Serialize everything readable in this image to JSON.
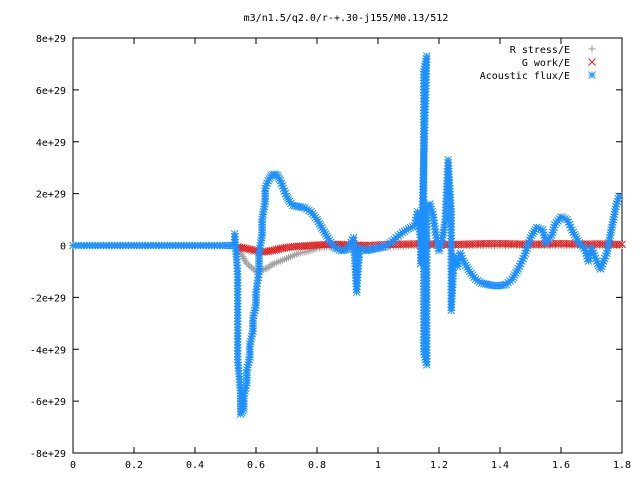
{
  "chart_data": {
    "type": "scatter",
    "title": "m3/n1.5/q2.0/r-+.30-j155/M0.13/512",
    "xlabel": "",
    "ylabel": "",
    "xlim": [
      0,
      1.8
    ],
    "ylim": [
      -8e+29,
      8e+29
    ],
    "x_ticks": [
      {
        "v": 0,
        "label": "0"
      },
      {
        "v": 0.2,
        "label": "0.2"
      },
      {
        "v": 0.4,
        "label": "0.4"
      },
      {
        "v": 0.6,
        "label": "0.6"
      },
      {
        "v": 0.8,
        "label": "0.8"
      },
      {
        "v": 1.0,
        "label": "1"
      },
      {
        "v": 1.2,
        "label": "1.2"
      },
      {
        "v": 1.4,
        "label": "1.4"
      },
      {
        "v": 1.6,
        "label": "1.6"
      },
      {
        "v": 1.8,
        "label": "1.8"
      }
    ],
    "y_ticks": [
      {
        "v": 8e+29,
        "label": "8e+29"
      },
      {
        "v": 6e+29,
        "label": "6e+29"
      },
      {
        "v": 4e+29,
        "label": "4e+29"
      },
      {
        "v": 2e+29,
        "label": "2e+29"
      },
      {
        "v": 0,
        "label": "0"
      },
      {
        "v": -2e+29,
        "label": "-2e+29"
      },
      {
        "v": -4e+29,
        "label": "-4e+29"
      },
      {
        "v": -6e+29,
        "label": "-6e+29"
      },
      {
        "v": -8e+29,
        "label": "-8e+29"
      }
    ],
    "grid": false,
    "legend_position": "top-right",
    "series": [
      {
        "name": "R stress/E",
        "marker": "plus",
        "color": "#a0a0a0",
        "points": [
          [
            0.54,
            -1e+28
          ],
          [
            0.55,
            -3e+28
          ],
          [
            0.56,
            -5e+28
          ],
          [
            0.57,
            -7e+28
          ],
          [
            0.58,
            -8e+28
          ],
          [
            0.59,
            -9e+28
          ],
          [
            0.6,
            -1e+29
          ],
          [
            0.61,
            -1e+29
          ],
          [
            0.62,
            -9.5e+28
          ],
          [
            0.63,
            -9e+28
          ],
          [
            0.64,
            -8.5e+28
          ],
          [
            0.65,
            -7.5e+28
          ],
          [
            0.66,
            -7e+28
          ],
          [
            0.68,
            -6e+28
          ],
          [
            0.7,
            -5e+28
          ],
          [
            0.72,
            -4e+28
          ],
          [
            0.74,
            -3e+28
          ],
          [
            0.76,
            -2.5e+28
          ],
          [
            0.78,
            -2e+28
          ],
          [
            0.8,
            -1e+28
          ],
          [
            0.84,
            -5e+27
          ],
          [
            0.88,
            -1e+28
          ],
          [
            0.92,
            -2e+28
          ],
          [
            0.96,
            -1.5e+28
          ],
          [
            1.0,
            -1e+28
          ],
          [
            1.05,
            -5e+27
          ],
          [
            1.1,
            0.0
          ],
          [
            1.2,
            0.0
          ],
          [
            1.3,
            0.0
          ],
          [
            1.4,
            0.0
          ],
          [
            1.5,
            0.0
          ],
          [
            1.6,
            0.0
          ],
          [
            1.7,
            0.0
          ],
          [
            1.8,
            0.0
          ]
        ]
      },
      {
        "name": "G work/E",
        "marker": "cross",
        "color": "#e02020",
        "points": [
          [
            0.54,
            -5e+27
          ],
          [
            0.56,
            -1e+28
          ],
          [
            0.58,
            -1.5e+28
          ],
          [
            0.6,
            -2e+28
          ],
          [
            0.62,
            -2.5e+28
          ],
          [
            0.64,
            -2.2e+28
          ],
          [
            0.66,
            -1.8e+28
          ],
          [
            0.68,
            -1.2e+28
          ],
          [
            0.7,
            -8e+27
          ],
          [
            0.72,
            -5e+27
          ],
          [
            0.74,
            -3e+27
          ],
          [
            0.76,
            -2e+27
          ],
          [
            0.78,
            0.0
          ],
          [
            0.8,
            2e+27
          ],
          [
            0.82,
            3e+27
          ],
          [
            0.84,
            4e+27
          ],
          [
            0.86,
            4e+27
          ],
          [
            0.88,
            4e+27
          ],
          [
            0.9,
            3e+27
          ],
          [
            0.92,
            2e+27
          ],
          [
            0.94,
            1e+27
          ],
          [
            0.96,
            0.0
          ],
          [
            1.0,
            2e+27
          ],
          [
            1.04,
            4e+27
          ],
          [
            1.08,
            5e+27
          ],
          [
            1.12,
            6e+27
          ],
          [
            1.16,
            6e+27
          ],
          [
            1.2,
            5e+27
          ],
          [
            1.24,
            4e+27
          ],
          [
            1.28,
            5e+27
          ],
          [
            1.32,
            6e+27
          ],
          [
            1.36,
            7e+27
          ],
          [
            1.4,
            7e+27
          ],
          [
            1.44,
            6e+27
          ],
          [
            1.48,
            5e+27
          ],
          [
            1.52,
            5e+27
          ],
          [
            1.56,
            6e+27
          ],
          [
            1.6,
            7e+27
          ],
          [
            1.64,
            6e+27
          ],
          [
            1.68,
            5e+27
          ],
          [
            1.72,
            6e+27
          ],
          [
            1.76,
            5e+27
          ],
          [
            1.8,
            4e+27
          ]
        ]
      },
      {
        "name": "Acoustic flux/E",
        "marker": "star",
        "color": "#1e90ff",
        "points": [
          [
            0.0,
            0.0
          ],
          [
            0.1,
            0.0
          ],
          [
            0.2,
            0.0
          ],
          [
            0.3,
            0.0
          ],
          [
            0.4,
            0.0
          ],
          [
            0.5,
            0.0
          ],
          [
            0.53,
            0.0
          ],
          [
            0.53,
            4.5e+28
          ],
          [
            0.54,
            -1.1e+29
          ],
          [
            0.54,
            -4.4e+29
          ],
          [
            0.55,
            -5.7e+29
          ],
          [
            0.55,
            -6.2e+29
          ],
          [
            0.55,
            -6.5e+29
          ],
          [
            0.56,
            -6.3e+29
          ],
          [
            0.56,
            -5.8e+29
          ],
          [
            0.57,
            -5.3e+29
          ],
          [
            0.57,
            -4.8e+29
          ],
          [
            0.58,
            -4.3e+29
          ],
          [
            0.58,
            -3.8e+29
          ],
          [
            0.59,
            -3.3e+29
          ],
          [
            0.59,
            -2.8e+29
          ],
          [
            0.6,
            -2.3e+29
          ],
          [
            0.6,
            -1.8e+29
          ],
          [
            0.61,
            -1e+29
          ],
          [
            0.61,
            -3e+28
          ],
          [
            0.62,
            4e+28
          ],
          [
            0.62,
            1e+29
          ],
          [
            0.63,
            1.7e+29
          ],
          [
            0.63,
            2.2e+29
          ],
          [
            0.64,
            2.5e+29
          ],
          [
            0.65,
            2.7e+29
          ],
          [
            0.66,
            2.75e+29
          ],
          [
            0.67,
            2.7e+29
          ],
          [
            0.68,
            2.5e+29
          ],
          [
            0.69,
            2.2e+29
          ],
          [
            0.7,
            1.9e+29
          ],
          [
            0.71,
            1.7e+29
          ],
          [
            0.72,
            1.55e+29
          ],
          [
            0.74,
            1.5e+29
          ],
          [
            0.76,
            1.45e+29
          ],
          [
            0.78,
            1.3e+29
          ],
          [
            0.8,
            1e+29
          ],
          [
            0.82,
            6e+28
          ],
          [
            0.84,
            2e+28
          ],
          [
            0.86,
            -1e+28
          ],
          [
            0.88,
            -2e+28
          ],
          [
            0.9,
            -1.5e+28
          ],
          [
            0.92,
            3e+28
          ],
          [
            0.93,
            -1.8e+29
          ],
          [
            0.94,
            -1e+28
          ],
          [
            0.96,
            -2e+28
          ],
          [
            0.98,
            -1.5e+28
          ],
          [
            1.0,
            -1e+28
          ],
          [
            1.02,
            -5e+27
          ],
          [
            1.04,
            1e+28
          ],
          [
            1.06,
            3e+28
          ],
          [
            1.08,
            5e+28
          ],
          [
            1.1,
            6.5e+28
          ],
          [
            1.12,
            7.5e+28
          ],
          [
            1.13,
            1.3e+29
          ],
          [
            1.14,
            2e+28
          ],
          [
            1.14,
            -7e+28
          ],
          [
            1.16,
            7.3e+29
          ],
          [
            1.15,
            6.7e+29
          ],
          [
            1.15,
            -4.1e+29
          ],
          [
            1.16,
            -4.6e+29
          ],
          [
            1.16,
            1.4e+29
          ],
          [
            1.17,
            1.6e+29
          ],
          [
            1.18,
            1.2e+29
          ],
          [
            1.19,
            4e+28
          ],
          [
            1.2,
            -2e+28
          ],
          [
            1.21,
            2e+28
          ],
          [
            1.22,
            9e+28
          ],
          [
            1.23,
            3.3e+29
          ],
          [
            1.24,
            1.3e+29
          ],
          [
            1.24,
            -2.5e+29
          ],
          [
            1.25,
            -4e+28
          ],
          [
            1.26,
            -8e+28
          ],
          [
            1.27,
            -3e+28
          ],
          [
            1.28,
            -6e+28
          ],
          [
            1.3,
            -1e+29
          ],
          [
            1.32,
            -1.3e+29
          ],
          [
            1.34,
            -1.45e+29
          ],
          [
            1.36,
            -1.5e+29
          ],
          [
            1.38,
            -1.55e+29
          ],
          [
            1.4,
            -1.55e+29
          ],
          [
            1.42,
            -1.5e+29
          ],
          [
            1.44,
            -1.3e+29
          ],
          [
            1.46,
            -9e+28
          ],
          [
            1.48,
            -4e+28
          ],
          [
            1.5,
            3e+28
          ],
          [
            1.52,
            7e+28
          ],
          [
            1.54,
            6e+28
          ],
          [
            1.55,
            1e+28
          ],
          [
            1.57,
            4e+28
          ],
          [
            1.58,
            8e+28
          ],
          [
            1.6,
            1.1e+29
          ],
          [
            1.62,
            1e+29
          ],
          [
            1.64,
            5e+28
          ],
          [
            1.66,
            1e+28
          ],
          [
            1.68,
            -2e+28
          ],
          [
            1.69,
            -6e+28
          ],
          [
            1.7,
            -1e+28
          ],
          [
            1.72,
            -7e+28
          ],
          [
            1.73,
            -9e+28
          ],
          [
            1.75,
            -3e+28
          ],
          [
            1.76,
            3e+28
          ],
          [
            1.77,
            9e+28
          ],
          [
            1.78,
            1.5e+29
          ],
          [
            1.79,
            1.9e+29
          ]
        ]
      }
    ]
  }
}
